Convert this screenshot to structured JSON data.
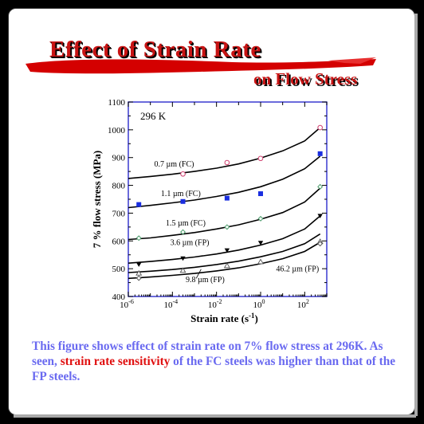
{
  "title": {
    "line1": "Effect of Strain Rate",
    "line2": "on Flow Stress"
  },
  "caption": {
    "part1": "This figure shows effect of strain rate on 7% flow stress at 296K. As seen, ",
    "highlight": "strain rate sensitivity",
    "part2": " of the FC steels was higher than that of the FP steels."
  },
  "colors": {
    "title_red": "#c81414",
    "caption_blue": "#6a6af0",
    "highlight_red": "#e01010",
    "axis_frame": "#3a3ad0"
  },
  "chart_data": {
    "type": "scatter",
    "annotation": "296 K",
    "xlabel": "Strain rate (s",
    "xlabel_sup": "-1",
    "xlabel_close": ")",
    "ylabel": "7 % flow stress (MPa)",
    "x_scale": "log",
    "xlim": [
      1e-06,
      1000
    ],
    "ylim": [
      400,
      1100
    ],
    "x_ticks": [
      {
        "value": 1e-06,
        "base": "10",
        "exp": "-6"
      },
      {
        "value": 0.0001,
        "base": "10",
        "exp": "-4"
      },
      {
        "value": 0.01,
        "base": "10",
        "exp": "-2"
      },
      {
        "value": 1,
        "base": "10",
        "exp": "0"
      },
      {
        "value": 100,
        "base": "10",
        "exp": "2"
      }
    ],
    "y_ticks": [
      400,
      500,
      600,
      700,
      800,
      900,
      1000,
      1100
    ],
    "series": [
      {
        "name": "0.7 µm (FC)",
        "marker": "circle-open",
        "color": "#d04070",
        "points": [
          [
            0.0003,
            841
          ],
          [
            0.03,
            882
          ],
          [
            1,
            897
          ],
          [
            500,
            1008
          ]
        ],
        "curve": [
          [
            1e-06,
            825
          ],
          [
            1e-05,
            832
          ],
          [
            0.0001,
            840
          ],
          [
            0.001,
            850
          ],
          [
            0.01,
            862
          ],
          [
            0.1,
            877
          ],
          [
            1,
            898
          ],
          [
            10,
            924
          ],
          [
            100,
            960
          ],
          [
            500,
            1008
          ]
        ]
      },
      {
        "name": "1.1 µm (FC)",
        "marker": "square-filled",
        "color": "#1a2ee0",
        "points": [
          [
            3e-06,
            731
          ],
          [
            0.0003,
            742
          ],
          [
            0.03,
            754
          ],
          [
            1,
            770
          ],
          [
            500,
            914
          ]
        ],
        "curve": [
          [
            1e-06,
            720
          ],
          [
            1e-05,
            728
          ],
          [
            0.0001,
            737
          ],
          [
            0.001,
            747
          ],
          [
            0.01,
            760
          ],
          [
            0.1,
            775
          ],
          [
            1,
            795
          ],
          [
            10,
            822
          ],
          [
            100,
            860
          ],
          [
            500,
            905
          ]
        ]
      },
      {
        "name": "1.5 µm (FC)",
        "marker": "diamond-small",
        "color": "#4a9a6a",
        "points": [
          [
            3e-06,
            610
          ],
          [
            0.0003,
            632
          ],
          [
            0.03,
            650
          ],
          [
            1,
            680
          ],
          [
            500,
            795
          ]
        ],
        "curve": [
          [
            1e-06,
            605
          ],
          [
            1e-05,
            611
          ],
          [
            0.0001,
            620
          ],
          [
            0.001,
            630
          ],
          [
            0.01,
            643
          ],
          [
            0.1,
            658
          ],
          [
            1,
            678
          ],
          [
            10,
            702
          ],
          [
            100,
            740
          ],
          [
            500,
            790
          ]
        ]
      },
      {
        "name": "3.6 µm (FP)",
        "marker": "triangle-down-filled",
        "color": "#000000",
        "points": [
          [
            3e-06,
            515
          ],
          [
            0.0003,
            537
          ],
          [
            0.03,
            566
          ],
          [
            1,
            593
          ],
          [
            500,
            690
          ]
        ],
        "curve": [
          [
            1e-06,
            520
          ],
          [
            1e-05,
            526
          ],
          [
            0.0001,
            533
          ],
          [
            0.001,
            542
          ],
          [
            0.01,
            553
          ],
          [
            0.1,
            567
          ],
          [
            1,
            585
          ],
          [
            10,
            608
          ],
          [
            100,
            643
          ],
          [
            500,
            690
          ]
        ]
      },
      {
        "name": "9.8 µm (FP)",
        "marker": "triangle-up-open",
        "color": "#555555",
        "points": [
          [
            3e-06,
            484
          ],
          [
            0.0003,
            494
          ],
          [
            0.03,
            511
          ],
          [
            1,
            525
          ],
          [
            500,
            598
          ]
        ],
        "curve": [
          [
            1e-06,
            486
          ],
          [
            1e-05,
            491
          ],
          [
            0.0001,
            497
          ],
          [
            0.001,
            505
          ],
          [
            0.01,
            515
          ],
          [
            0.1,
            527
          ],
          [
            1,
            543
          ],
          [
            10,
            562
          ],
          [
            100,
            590
          ],
          [
            500,
            625
          ]
        ]
      },
      {
        "name": "46.2 µm (FP)",
        "marker": "diamond-small",
        "color": "#555555",
        "points": [
          [
            3e-06,
            466
          ],
          [
            500,
            590
          ]
        ],
        "curve": [
          [
            1e-06,
            465
          ],
          [
            1e-05,
            470
          ],
          [
            0.0001,
            476
          ],
          [
            0.001,
            483
          ],
          [
            0.01,
            492
          ],
          [
            0.1,
            503
          ],
          [
            1,
            518
          ],
          [
            10,
            536
          ],
          [
            100,
            562
          ],
          [
            500,
            595
          ]
        ]
      }
    ],
    "labels": [
      {
        "text": "0.7 µm (FC)",
        "x": 1.5e-05,
        "y": 867
      },
      {
        "text": "1.1 µm (FC)",
        "x": 3e-05,
        "y": 762
      },
      {
        "text": "1.5 µm (FC)",
        "x": 5e-05,
        "y": 655
      },
      {
        "text": "3.6 µm (FP)",
        "x": 8e-05,
        "y": 585
      },
      {
        "text": "9.8 µm (FP)",
        "x": 0.0004,
        "y": 452
      },
      {
        "text": "46.2 µm (FP)",
        "x": 5,
        "y": 490
      }
    ]
  }
}
